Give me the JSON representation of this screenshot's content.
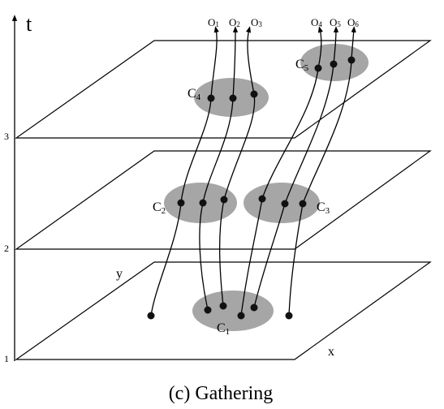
{
  "axis": {
    "t_label": "t",
    "x_label": "x",
    "y_label": "y",
    "ticks": [
      "1",
      "2",
      "3"
    ]
  },
  "clusters": [
    {
      "main": "C",
      "sub": "1"
    },
    {
      "main": "C",
      "sub": "2"
    },
    {
      "main": "C",
      "sub": "3"
    },
    {
      "main": "C",
      "sub": "4"
    },
    {
      "main": "C",
      "sub": "5"
    }
  ],
  "objects": [
    {
      "main": "O",
      "sub": "1"
    },
    {
      "main": "O",
      "sub": "2"
    },
    {
      "main": "O",
      "sub": "3"
    },
    {
      "main": "O",
      "sub": "4"
    },
    {
      "main": "O",
      "sub": "5"
    },
    {
      "main": "O",
      "sub": "6"
    }
  ],
  "caption": "(c) Gathering",
  "colors": {
    "cluster_fill": "#a6a6a6",
    "line": "#000000"
  }
}
